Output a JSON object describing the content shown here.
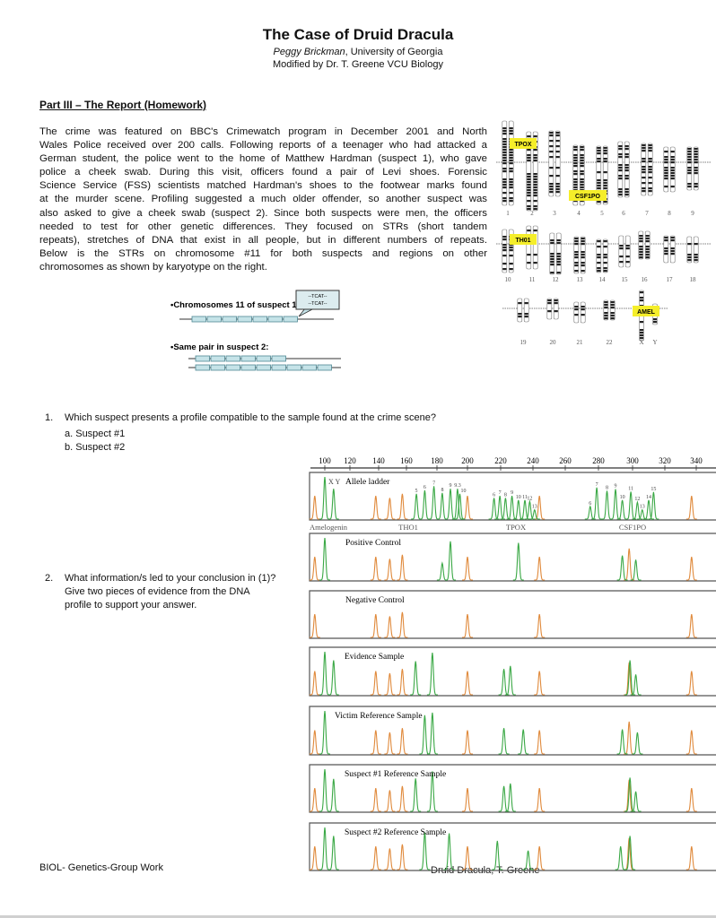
{
  "header": {
    "title": "The Case of Druid Dracula",
    "author": "Peggy Brickman",
    "affiliation": ", University of Georgia",
    "modified": "Modified by Dr. T. Greene VCU Biology"
  },
  "section_title": "Part III – The Report (Homework)",
  "paragraph_lines": [
    "The crime was featured on BBC's Crimewatch program in December 2001 and North",
    "Wales Police received over 200 calls. Following reports of a teenager who had attacked a",
    "German student, the police went to the home of Matthew Hardman (suspect 1), who gave",
    "police a cheek swab. During this visit, officers found a pair of Levi shoes. Forensic",
    "Science Service (FSS) scientists matched Hardman's shoes to the footwear marks found",
    "at the murder scene. Profiling suggested a much older offender, so another suspect was",
    "also asked to give a cheek swab (suspect 2). Since both suspects were men, the officers",
    "needed to test for other genetic differences. They focused on STRs (short tandem",
    "repeats), stretches of DNA that exist in all people, but in different numbers of repeats.",
    "Below is the STRs on chromosome #11 for both suspects and regions on other",
    "chromosomes as shown by karyotype on the right."
  ],
  "str_diagram": {
    "suspect1_label": "•Chromosomes 11 of suspect 1:",
    "callout_lines": [
      "--TCAT--",
      "--TCAT--"
    ],
    "suspect2_label": "•Same pair in suspect 2:",
    "suspect1_repeats": 7,
    "suspect2_repeats": [
      6,
      9
    ]
  },
  "karyotype": {
    "chromosome_labels": [
      "1",
      "2",
      "3",
      "4",
      "5",
      "6",
      "7",
      "8",
      "9",
      "10",
      "11",
      "12",
      "13",
      "14",
      "15",
      "16",
      "17",
      "18",
      "19",
      "20",
      "21",
      "22",
      "X",
      "Y"
    ],
    "markers": [
      {
        "label": "TPOX",
        "chromosome": "2"
      },
      {
        "label": "CSF1PO",
        "chromosome": "5"
      },
      {
        "label": "TH01",
        "chromosome": "11"
      },
      {
        "label": "AMEL",
        "chromosome": "X"
      }
    ],
    "marker_color": "#f5ee2a"
  },
  "questions": [
    {
      "number": "1.",
      "lines": [
        "Which suspect presents a profile compatible to the sample found at the crime scene?"
      ],
      "options": [
        "a. Suspect #1",
        "b. Suspect #2"
      ]
    },
    {
      "number": "2.",
      "lines": [
        "What information/s led to your conclusion in (1)?",
        "Give two pieces of evidence from the DNA",
        "profile to support your answer."
      ]
    }
  ],
  "profile": {
    "axis_ticks": [
      "100",
      "120",
      "140",
      "160",
      "180",
      "200",
      "220",
      "240",
      "260",
      "280",
      "300",
      "320",
      "340"
    ],
    "loci": [
      "Amelogenin",
      "THO1",
      "TPOX",
      "CSF1PO"
    ],
    "colors": {
      "allele": "#3aa845",
      "standard": "#e08a3c"
    },
    "standard_peaks_bp": [
      92,
      138,
      148,
      157,
      200,
      244,
      337
    ],
    "ladder": {
      "label": "Allele ladder",
      "xy_label": "X Y",
      "peaks": [
        {
          "bp": 100,
          "h": 1.0,
          "allele": ""
        },
        {
          "bp": 107,
          "h": 0.72,
          "allele": ""
        },
        {
          "bp": 166.5,
          "h": 0.6,
          "allele": "5"
        },
        {
          "bp": 172,
          "h": 0.68,
          "allele": "6"
        },
        {
          "bp": 178,
          "h": 0.78,
          "allele": "7"
        },
        {
          "bp": 183.5,
          "h": 0.62,
          "allele": "8"
        },
        {
          "bp": 188.8,
          "h": 0.72,
          "allele": "9"
        },
        {
          "bp": 193.5,
          "h": 0.72,
          "allele": "9.3"
        },
        {
          "bp": 195,
          "h": 0.6,
          "allele": "10"
        },
        {
          "bp": 216,
          "h": 0.5,
          "allele": "6"
        },
        {
          "bp": 219.5,
          "h": 0.55,
          "allele": "7"
        },
        {
          "bp": 223,
          "h": 0.5,
          "allele": "8"
        },
        {
          "bp": 227,
          "h": 0.55,
          "allele": "9"
        },
        {
          "bp": 231,
          "h": 0.45,
          "allele": "10"
        },
        {
          "bp": 235,
          "h": 0.45,
          "allele": "11"
        },
        {
          "bp": 238,
          "h": 0.42,
          "allele": "12"
        },
        {
          "bp": 241,
          "h": 0.22,
          "allele": "13"
        },
        {
          "bp": 275,
          "h": 0.3,
          "allele": "6"
        },
        {
          "bp": 279,
          "h": 0.75,
          "allele": "7"
        },
        {
          "bp": 285,
          "h": 0.67,
          "allele": "8"
        },
        {
          "bp": 290,
          "h": 0.71,
          "allele": "9"
        },
        {
          "bp": 294,
          "h": 0.45,
          "allele": "10"
        },
        {
          "bp": 299,
          "h": 0.65,
          "allele": "11"
        },
        {
          "bp": 303,
          "h": 0.4,
          "allele": "12"
        },
        {
          "bp": 306,
          "h": 0.22,
          "allele": "13"
        },
        {
          "bp": 310,
          "h": 0.45,
          "allele": "14"
        },
        {
          "bp": 313,
          "h": 0.64,
          "allele": "15"
        }
      ]
    },
    "samples": [
      {
        "label": "Positive Control",
        "orange_extra": [
          298
        ],
        "peaks": [
          {
            "bp": 100,
            "h": 1.0
          },
          {
            "bp": 183.5,
            "h": 0.4
          },
          {
            "bp": 188.8,
            "h": 0.92
          },
          {
            "bp": 231,
            "h": 0.88
          },
          {
            "bp": 294,
            "h": 0.58
          },
          {
            "bp": 302,
            "h": 0.48
          }
        ]
      },
      {
        "label": "Negative Control",
        "orange_extra": [],
        "peaks": []
      },
      {
        "label": "Evidence Sample",
        "orange_extra": [
          298
        ],
        "peaks": [
          {
            "bp": 100,
            "h": 1.0
          },
          {
            "bp": 107,
            "h": 0.8
          },
          {
            "bp": 166,
            "h": 0.78
          },
          {
            "bp": 177,
            "h": 0.98
          },
          {
            "bp": 222,
            "h": 0.6
          },
          {
            "bp": 226,
            "h": 0.67
          },
          {
            "bp": 298.5,
            "h": 0.8
          },
          {
            "bp": 302,
            "h": 0.47
          }
        ]
      },
      {
        "label": "Victim Reference Sample",
        "orange_extra": [
          298
        ],
        "peaks": [
          {
            "bp": 100,
            "h": 1.0
          },
          {
            "bp": 172,
            "h": 0.9
          },
          {
            "bp": 177,
            "h": 0.96
          },
          {
            "bp": 222,
            "h": 0.6
          },
          {
            "bp": 234,
            "h": 0.57
          },
          {
            "bp": 294,
            "h": 0.57
          },
          {
            "bp": 303,
            "h": 0.5
          }
        ]
      },
      {
        "label": "Suspect #1 Reference Sample",
        "orange_extra": [
          298
        ],
        "peaks": [
          {
            "bp": 100,
            "h": 1.0
          },
          {
            "bp": 107,
            "h": 0.77
          },
          {
            "bp": 166,
            "h": 0.78
          },
          {
            "bp": 177,
            "h": 0.95
          },
          {
            "bp": 222,
            "h": 0.6
          },
          {
            "bp": 226,
            "h": 0.66
          },
          {
            "bp": 298.5,
            "h": 0.8
          },
          {
            "bp": 302,
            "h": 0.47
          }
        ]
      },
      {
        "label": "Suspect #2 Reference Sample",
        "orange_extra": [
          298
        ],
        "peaks": [
          {
            "bp": 100,
            "h": 1.0
          },
          {
            "bp": 107,
            "h": 0.8
          },
          {
            "bp": 172,
            "h": 0.88
          },
          {
            "bp": 188,
            "h": 0.86
          },
          {
            "bp": 218,
            "h": 0.68
          },
          {
            "bp": 237,
            "h": 0.45
          },
          {
            "bp": 293,
            "h": 0.55
          },
          {
            "bp": 298.5,
            "h": 0.8
          }
        ]
      }
    ]
  },
  "footer": {
    "left": "BIOL- Genetics-Group Work",
    "center": "Druid Dracula, T. Greene"
  }
}
